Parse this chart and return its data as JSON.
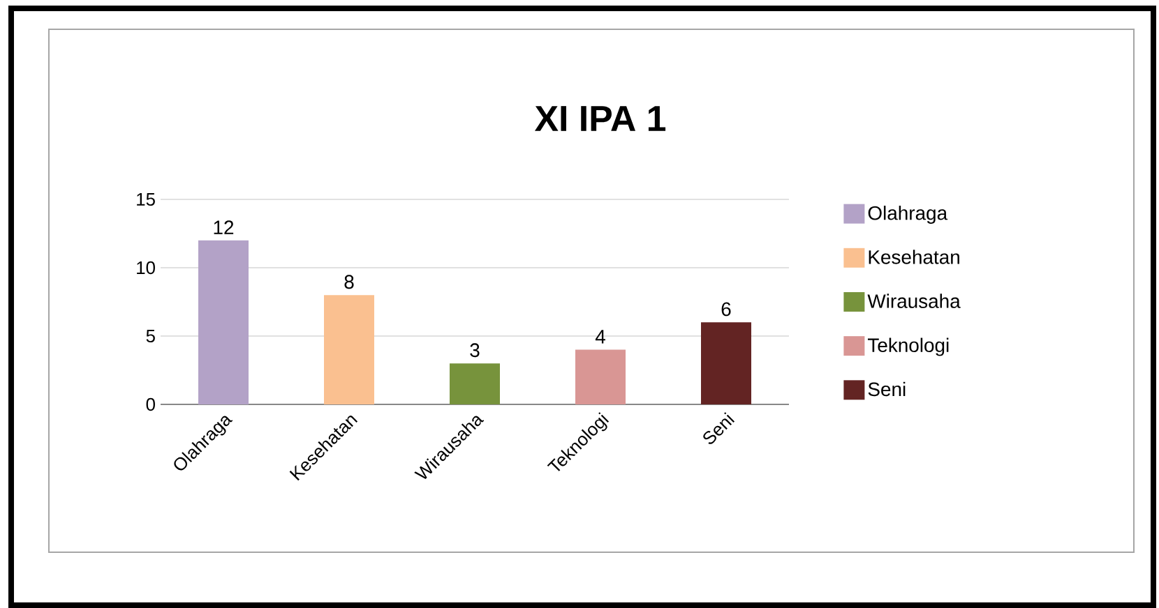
{
  "chart_data": {
    "type": "bar",
    "title": "XI IPA 1",
    "categories": [
      "Olahraga",
      "Kesehatan",
      "Wirausaha",
      "Teknologi",
      "Seni"
    ],
    "series": [
      {
        "name": "Olahraga",
        "color": "#b3a2c7",
        "values": [
          12,
          null,
          null,
          null,
          null
        ]
      },
      {
        "name": "Kesehatan",
        "color": "#fac090",
        "values": [
          null,
          8,
          null,
          null,
          null
        ]
      },
      {
        "name": "Wirausaha",
        "color": "#77933c",
        "values": [
          null,
          null,
          3,
          null,
          null
        ]
      },
      {
        "name": "Teknologi",
        "color": "#d99694",
        "values": [
          null,
          null,
          null,
          4,
          null
        ]
      },
      {
        "name": "Seni",
        "color": "#632423",
        "values": [
          null,
          null,
          null,
          null,
          6
        ]
      }
    ],
    "ylim": [
      0,
      15
    ],
    "yticks": [
      0,
      5,
      10,
      15
    ],
    "grid": "y",
    "legend": "right",
    "data_labels": true
  }
}
